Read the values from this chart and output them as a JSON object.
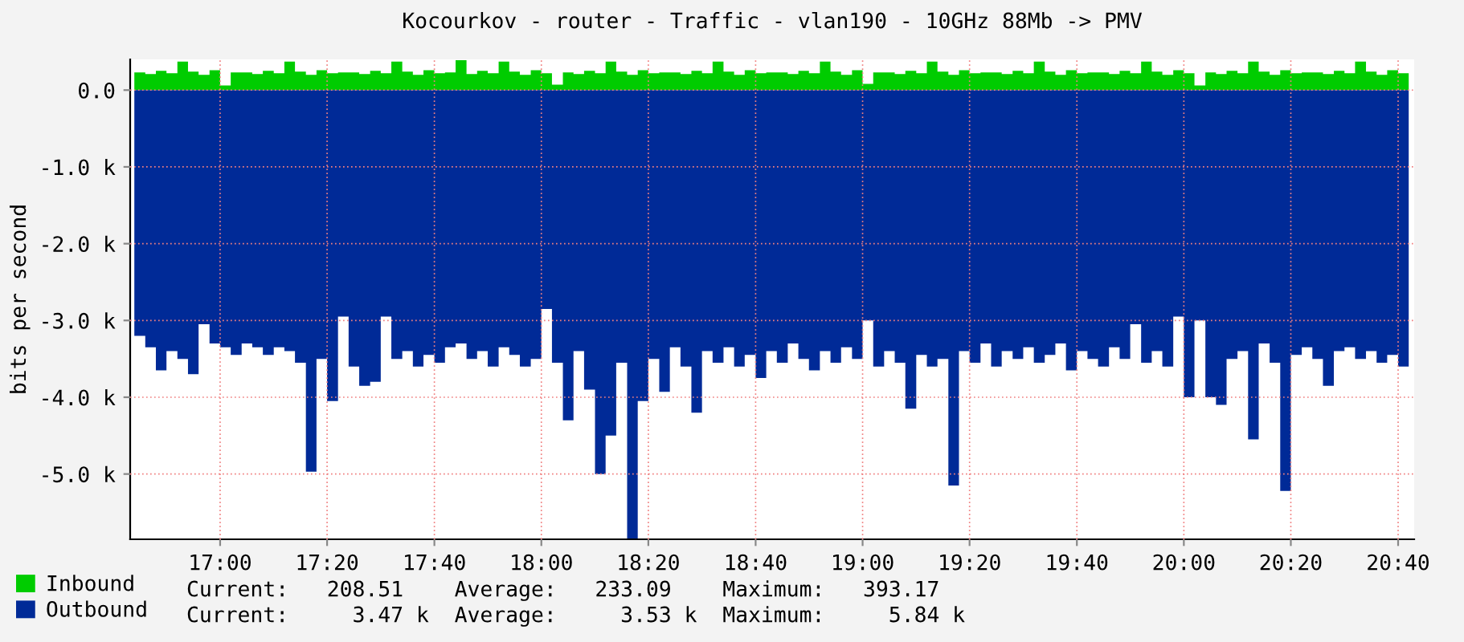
{
  "chart_data": {
    "type": "area",
    "title": "Kocourkov - router - Traffic - vlan190 - 10GHz 88Mb -> PMV",
    "ylabel": "bits per second",
    "x": [
      16.733,
      16.767,
      16.8,
      16.833,
      16.867,
      16.9,
      16.933,
      16.967,
      17.0,
      17.033,
      17.067,
      17.1,
      17.133,
      17.167,
      17.2,
      17.233,
      17.267,
      17.3,
      17.333,
      17.367,
      17.4,
      17.433,
      17.467,
      17.5,
      17.533,
      17.567,
      17.6,
      17.633,
      17.667,
      17.7,
      17.733,
      17.767,
      17.8,
      17.833,
      17.867,
      17.9,
      17.933,
      17.967,
      18.0,
      18.033,
      18.067,
      18.1,
      18.133,
      18.167,
      18.2,
      18.233,
      18.267,
      18.3,
      18.333,
      18.367,
      18.4,
      18.433,
      18.467,
      18.5,
      18.533,
      18.567,
      18.6,
      18.633,
      18.667,
      18.7,
      18.733,
      18.767,
      18.8,
      18.833,
      18.867,
      18.9,
      18.933,
      18.967,
      19.0,
      19.033,
      19.067,
      19.1,
      19.133,
      19.167,
      19.2,
      19.233,
      19.267,
      19.3,
      19.333,
      19.367,
      19.4,
      19.433,
      19.467,
      19.5,
      19.533,
      19.567,
      19.6,
      19.633,
      19.667,
      19.7,
      19.733,
      19.767,
      19.8,
      19.833,
      19.867,
      19.9,
      19.933,
      19.967,
      20.0,
      20.033,
      20.067,
      20.1,
      20.133,
      20.167,
      20.2,
      20.233,
      20.267,
      20.3,
      20.333,
      20.367,
      20.4,
      20.433,
      20.467,
      20.5,
      20.533,
      20.567,
      20.6,
      20.633,
      20.667,
      20.7
    ],
    "series": [
      {
        "name": "Inbound",
        "color": "#00cc00",
        "values": [
          230,
          210,
          250,
          220,
          370,
          240,
          200,
          260,
          60,
          230,
          230,
          210,
          250,
          220,
          370,
          240,
          200,
          260,
          220,
          230,
          230,
          210,
          250,
          220,
          370,
          240,
          200,
          260,
          220,
          230,
          390,
          210,
          250,
          220,
          370,
          240,
          200,
          260,
          220,
          70,
          230,
          210,
          250,
          220,
          370,
          240,
          200,
          260,
          220,
          230,
          230,
          210,
          250,
          220,
          370,
          240,
          200,
          260,
          220,
          230,
          230,
          210,
          250,
          220,
          370,
          240,
          200,
          260,
          80,
          230,
          230,
          210,
          250,
          220,
          370,
          240,
          200,
          260,
          220,
          230,
          230,
          210,
          250,
          220,
          370,
          240,
          200,
          260,
          220,
          230,
          230,
          210,
          250,
          220,
          370,
          240,
          200,
          260,
          220,
          60,
          230,
          210,
          250,
          220,
          370,
          240,
          200,
          260,
          220,
          230,
          230,
          210,
          250,
          220,
          370,
          240,
          200,
          260,
          220,
          230
        ]
      },
      {
        "name": "Outbound",
        "color": "#002a97",
        "values": [
          -3200,
          -3350,
          -3650,
          -3400,
          -3500,
          -3700,
          -3050,
          -3300,
          -3350,
          -3450,
          -3300,
          -3350,
          -3450,
          -3350,
          -3400,
          -3550,
          -4970,
          -3500,
          -4050,
          -2950,
          -3600,
          -3850,
          -3800,
          -2950,
          -3500,
          -3400,
          -3600,
          -3450,
          -3550,
          -3350,
          -3300,
          -3500,
          -3400,
          -3600,
          -3350,
          -3450,
          -3600,
          -3500,
          -2850,
          -3550,
          -4300,
          -3400,
          -3900,
          -5000,
          -4500,
          -3550,
          -5840,
          -4050,
          -3500,
          -3930,
          -3350,
          -3600,
          -4200,
          -3400,
          -3550,
          -3350,
          -3600,
          -3450,
          -3750,
          -3400,
          -3550,
          -3300,
          -3500,
          -3650,
          -3400,
          -3550,
          -3350,
          -3500,
          -3000,
          -3600,
          -3400,
          -3550,
          -4150,
          -3450,
          -3600,
          -3500,
          -5150,
          -3400,
          -3550,
          -3300,
          -3600,
          -3400,
          -3500,
          -3350,
          -3550,
          -3450,
          -3300,
          -3650,
          -3400,
          -3500,
          -3600,
          -3350,
          -3500,
          -3050,
          -3550,
          -3400,
          -3600,
          -2950,
          -4000,
          -3000,
          -4000,
          -4100,
          -3500,
          -3400,
          -4550,
          -3300,
          -3550,
          -5220,
          -3450,
          -3350,
          -3500,
          -3850,
          -3400,
          -3350,
          -3500,
          -3400,
          -3550,
          -3450,
          -3600,
          -3450
        ]
      }
    ],
    "xlim": [
      16.72,
      20.717
    ],
    "ylim": [
      -5850,
      400
    ],
    "xticks": [
      {
        "value": 17,
        "label": "17:00"
      },
      {
        "value": 17.333,
        "label": "17:20"
      },
      {
        "value": 17.667,
        "label": "17:40"
      },
      {
        "value": 18,
        "label": "18:00"
      },
      {
        "value": 18.333,
        "label": "18:20"
      },
      {
        "value": 18.667,
        "label": "18:40"
      },
      {
        "value": 19,
        "label": "19:00"
      },
      {
        "value": 19.333,
        "label": "19:20"
      },
      {
        "value": 19.667,
        "label": "19:40"
      },
      {
        "value": 20,
        "label": "20:00"
      },
      {
        "value": 20.333,
        "label": "20:20"
      },
      {
        "value": 20.667,
        "label": "20:40"
      }
    ],
    "yticks": [
      {
        "value": 0,
        "label": "0.0"
      },
      {
        "value": -1000,
        "label": "-1.0 k"
      },
      {
        "value": -2000,
        "label": "-2.0 k"
      },
      {
        "value": -3000,
        "label": "-3.0 k"
      },
      {
        "value": -4000,
        "label": "-4.0 k"
      },
      {
        "value": -5000,
        "label": "-5.0 k"
      }
    ],
    "grid": true,
    "legend": "bottom",
    "annotations": [
      "Current:   208.51    Average:   233.09    Maximum:   393.17",
      "Current:     3.47 k  Average:     3.53 k  Maximum:     5.84 k"
    ]
  }
}
